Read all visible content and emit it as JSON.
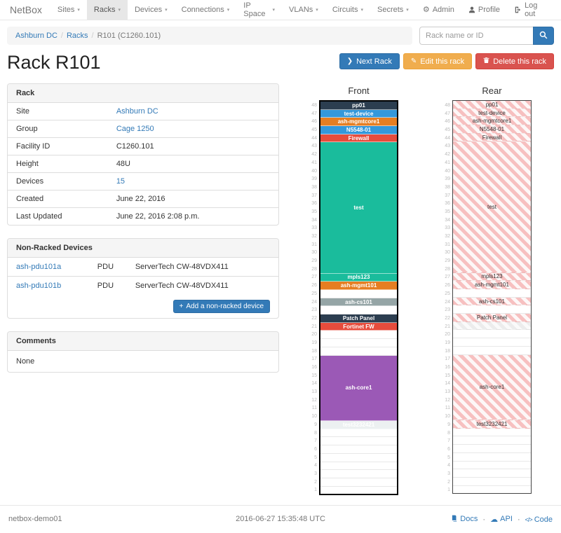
{
  "navbar": {
    "brand": "NetBox",
    "items": [
      {
        "label": "Sites",
        "active": false
      },
      {
        "label": "Racks",
        "active": true
      },
      {
        "label": "Devices",
        "active": false
      },
      {
        "label": "Connections",
        "active": false
      },
      {
        "label": "IP Space",
        "active": false
      },
      {
        "label": "VLANs",
        "active": false
      },
      {
        "label": "Circuits",
        "active": false
      },
      {
        "label": "Secrets",
        "active": false
      }
    ],
    "admin": "Admin",
    "profile": "Profile",
    "logout": "Log out"
  },
  "breadcrumb": {
    "site": "Ashburn DC",
    "section": "Racks",
    "current": "R101 (C1260.101)"
  },
  "search": {
    "placeholder": "Rack name or ID"
  },
  "actions": {
    "next_rack": "Next Rack",
    "edit": "Edit this rack",
    "delete": "Delete this rack"
  },
  "page_title": "Rack R101",
  "rack_panel": {
    "title": "Rack",
    "rows": [
      {
        "label": "Site",
        "value": "Ashburn DC",
        "is_link": true
      },
      {
        "label": "Group",
        "value": "Cage 1250",
        "is_link": true
      },
      {
        "label": "Facility ID",
        "value": "C1260.101",
        "is_link": false
      },
      {
        "label": "Height",
        "value": "48U",
        "is_link": false
      },
      {
        "label": "Devices",
        "value": "15",
        "is_link": true
      },
      {
        "label": "Created",
        "value": "June 22, 2016",
        "is_link": false
      },
      {
        "label": "Last Updated",
        "value": "June 22, 2016 2:08 p.m.",
        "is_link": false
      }
    ]
  },
  "non_racked_panel": {
    "title": "Non-Racked Devices",
    "devices": [
      {
        "name": "ash-pdu101a",
        "type": "PDU",
        "model": "ServerTech CW-48VDX411"
      },
      {
        "name": "ash-pdu101b",
        "type": "PDU",
        "model": "ServerTech CW-48VDX411"
      }
    ],
    "add_button": "Add a non-racked device"
  },
  "comments_panel": {
    "title": "Comments",
    "body": "None"
  },
  "elevation": {
    "units_total": 48,
    "front": {
      "title": "Front",
      "slots": [
        {
          "u": 48,
          "units": 1,
          "label": "pp01",
          "bg": "#2c3e50"
        },
        {
          "u": 47,
          "units": 1,
          "label": "test-device",
          "bg": "#3498db"
        },
        {
          "u": 46,
          "units": 1,
          "label": "ash-mgmtcore1",
          "bg": "#e67e22"
        },
        {
          "u": 45,
          "units": 1,
          "label": "N5548-01",
          "bg": "#3498db"
        },
        {
          "u": 44,
          "units": 1,
          "label": "Firewall",
          "bg": "#e74c3c"
        },
        {
          "u": 43,
          "units": 16,
          "label": "test",
          "bg": "#1abc9c"
        },
        {
          "u": 27,
          "units": 1,
          "label": "mpls123",
          "bg": "#1abc9c"
        },
        {
          "u": 26,
          "units": 1,
          "label": "ash-mgmt101",
          "bg": "#e67e22"
        },
        {
          "u": 25,
          "units": 1,
          "empty": true
        },
        {
          "u": 24,
          "units": 1,
          "label": "ash-cs101",
          "bg": "#95a5a6"
        },
        {
          "u": 23,
          "units": 1,
          "empty": true
        },
        {
          "u": 22,
          "units": 1,
          "label": "Patch Panel",
          "bg": "#2c3e50"
        },
        {
          "u": 21,
          "units": 1,
          "label": "Fortinet FW",
          "bg": "#e74c3c"
        },
        {
          "u": 20,
          "units": 3,
          "empty": true
        },
        {
          "u": 17,
          "units": 8,
          "label": "ash-core1",
          "bg": "#9b59b6"
        },
        {
          "u": 9,
          "units": 1,
          "label": "test3232421",
          "bg": "#ecf0f1"
        },
        {
          "u": 8,
          "units": 8,
          "empty": true
        }
      ]
    },
    "rear": {
      "title": "Rear",
      "slots": [
        {
          "u": 48,
          "units": 1,
          "label": "pp01",
          "hatch": "pink"
        },
        {
          "u": 47,
          "units": 1,
          "label": "test-device",
          "hatch": "pink"
        },
        {
          "u": 46,
          "units": 1,
          "label": "ash-mgmtcore1",
          "hatch": "pink"
        },
        {
          "u": 45,
          "units": 1,
          "label": "N5548-01",
          "hatch": "pink"
        },
        {
          "u": 44,
          "units": 1,
          "label": "Firewall",
          "hatch": "pink"
        },
        {
          "u": 43,
          "units": 16,
          "label": "test",
          "hatch": "pink"
        },
        {
          "u": 27,
          "units": 1,
          "label": "mpls123",
          "hatch": "pink"
        },
        {
          "u": 26,
          "units": 1,
          "label": "ash-mgmt101",
          "hatch": "pink"
        },
        {
          "u": 25,
          "units": 1,
          "empty": true
        },
        {
          "u": 24,
          "units": 1,
          "label": "ash-cs101",
          "hatch": "pink"
        },
        {
          "u": 23,
          "units": 1,
          "empty": true
        },
        {
          "u": 22,
          "units": 1,
          "label": "Patch Panel",
          "hatch": "pink"
        },
        {
          "u": 21,
          "units": 1,
          "label": "",
          "hatch": "gray"
        },
        {
          "u": 20,
          "units": 3,
          "empty": true
        },
        {
          "u": 17,
          "units": 8,
          "label": "ash-core1",
          "hatch": "pink"
        },
        {
          "u": 9,
          "units": 1,
          "label": "test3232421",
          "hatch": "pink"
        },
        {
          "u": 8,
          "units": 8,
          "empty": true
        }
      ]
    }
  },
  "footer": {
    "hostname": "netbox-demo01",
    "timestamp": "2016-06-27 15:35:48 UTC",
    "docs": "Docs",
    "api": "API",
    "code": "Code"
  }
}
